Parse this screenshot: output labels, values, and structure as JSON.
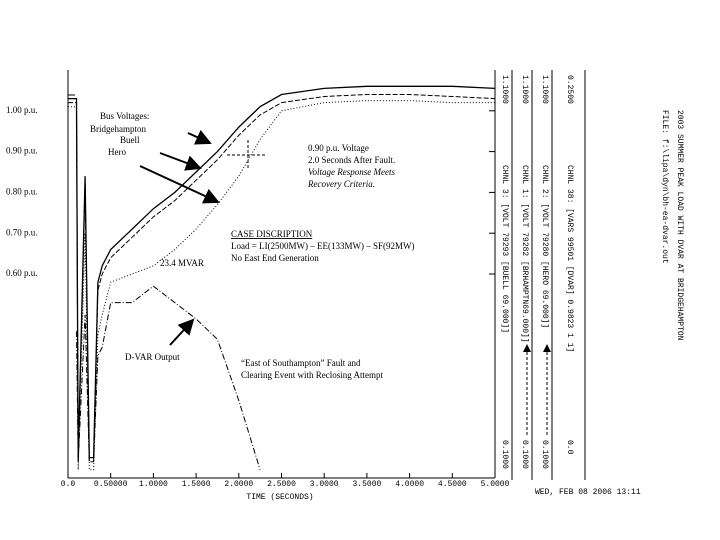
{
  "chart_data": {
    "type": "line",
    "x_label": "TIME (SECONDS)",
    "x": [
      0,
      0.05,
      0.1,
      0.12,
      0.2,
      0.25,
      0.3,
      0.35,
      0.4,
      0.5,
      0.75,
      1.0,
      1.25,
      1.5,
      1.75,
      2.0,
      2.25,
      2.5,
      3.0,
      3.5,
      4.0,
      4.5,
      5.0
    ],
    "xlim": [
      0,
      5
    ],
    "xticks": [
      {
        "value": 0,
        "label": "0.0"
      },
      {
        "value": 0.5,
        "label": "0.50000"
      },
      {
        "value": 1,
        "label": "1.0000"
      },
      {
        "value": 1.5,
        "label": "1.5000"
      },
      {
        "value": 2,
        "label": "2.0000"
      },
      {
        "value": 2.5,
        "label": "2.5000"
      },
      {
        "value": 3,
        "label": "3.0000"
      },
      {
        "value": 3.5,
        "label": "3.5000"
      },
      {
        "value": 4,
        "label": "4.0000"
      },
      {
        "value": 4.5,
        "label": "4.5000"
      },
      {
        "value": 5,
        "label": "5.0000"
      }
    ],
    "ylim": [
      0.1,
      1.1
    ],
    "yticks": [
      {
        "value": 1.0,
        "label": "1.00 p.u."
      },
      {
        "value": 0.9,
        "label": "0.90 p.u."
      },
      {
        "value": 0.8,
        "label": "0.80 p.u."
      },
      {
        "value": 0.7,
        "label": "0.70 p.u."
      },
      {
        "value": 0.6,
        "label": "0.60 p.u."
      }
    ],
    "series": [
      {
        "name": "Bridgehampton",
        "color": "#000000",
        "style": "solid",
        "values": [
          1.03,
          1.03,
          1.03,
          0.15,
          0.84,
          0.15,
          0.15,
          0.58,
          0.62,
          0.66,
          0.71,
          0.76,
          0.8,
          0.85,
          0.9,
          0.96,
          1.01,
          1.04,
          1.055,
          1.06,
          1.06,
          1.06,
          1.055
        ]
      },
      {
        "name": "Buell",
        "color": "#000000",
        "style": "dashed",
        "values": [
          1.02,
          1.02,
          1.02,
          0.14,
          0.82,
          0.14,
          0.14,
          0.56,
          0.6,
          0.64,
          0.69,
          0.74,
          0.78,
          0.83,
          0.88,
          0.94,
          0.99,
          1.02,
          1.035,
          1.04,
          1.04,
          1.035,
          1.03
        ]
      },
      {
        "name": "Hero",
        "color": "#000000",
        "style": "dotted",
        "values": [
          1.01,
          1.01,
          1.01,
          0.12,
          0.7,
          0.12,
          0.12,
          0.45,
          0.5,
          0.58,
          0.6,
          0.62,
          0.66,
          0.71,
          0.77,
          0.84,
          0.93,
          1.0,
          1.02,
          1.025,
          1.025,
          1.02,
          1.02
        ]
      },
      {
        "name": "D-VAR Output",
        "color": "#000000",
        "style": "dashdot",
        "values": [
          null,
          null,
          0.46,
          0.14,
          0.5,
          0.14,
          0.14,
          0.4,
          0.42,
          0.53,
          0.53,
          0.57,
          0.53,
          0.49,
          0.44,
          0.29,
          0.12,
          null,
          null,
          null,
          null,
          null,
          null
        ]
      }
    ],
    "series_heading": "Bus Voltages:",
    "annotations": [
      "0.90 p.u. Voltage",
      "2.0 Seconds After Fault.",
      "Voltage Response Meets",
      "Recovery Criteria.",
      "CASE DISCRIPTION",
      "Load = LI(2500MW) – EE(133MW) – SF(92MW)",
      "No East End Generation",
      "23.4 MVAR",
      "“East of Southampton” Fault and",
      "Clearing Event with Reclosing Attempt"
    ],
    "channels": [
      {
        "top": "1.1000",
        "label": "CHNL 3: [VOLT 79293 [BUELL 69.000]]",
        "bottom": "0.1000"
      },
      {
        "top": "1.1000",
        "label": "CHNL 1: [VOLT 79282 [BRHAMPTN69.000]]",
        "bottom": "0.1000"
      },
      {
        "top": "1.1000",
        "label": "CHNL 2: [VOLT 79280 [HERO 69.000]]",
        "bottom": "0.1000"
      },
      {
        "top": "0.2500",
        "label": "CHNL 38: [VARS 99501 [DVAR] 0.9823 1 1]",
        "bottom": "0.0"
      }
    ],
    "header": [
      "2003 SUMMER PEAK LOAD WITH DVAR AT BRIDGEHAMPTON",
      "FILE: f:\\lipa\\dyn\\bh-ea-dvar.out"
    ],
    "date": "WED, FEB 08 2006  13:11"
  }
}
